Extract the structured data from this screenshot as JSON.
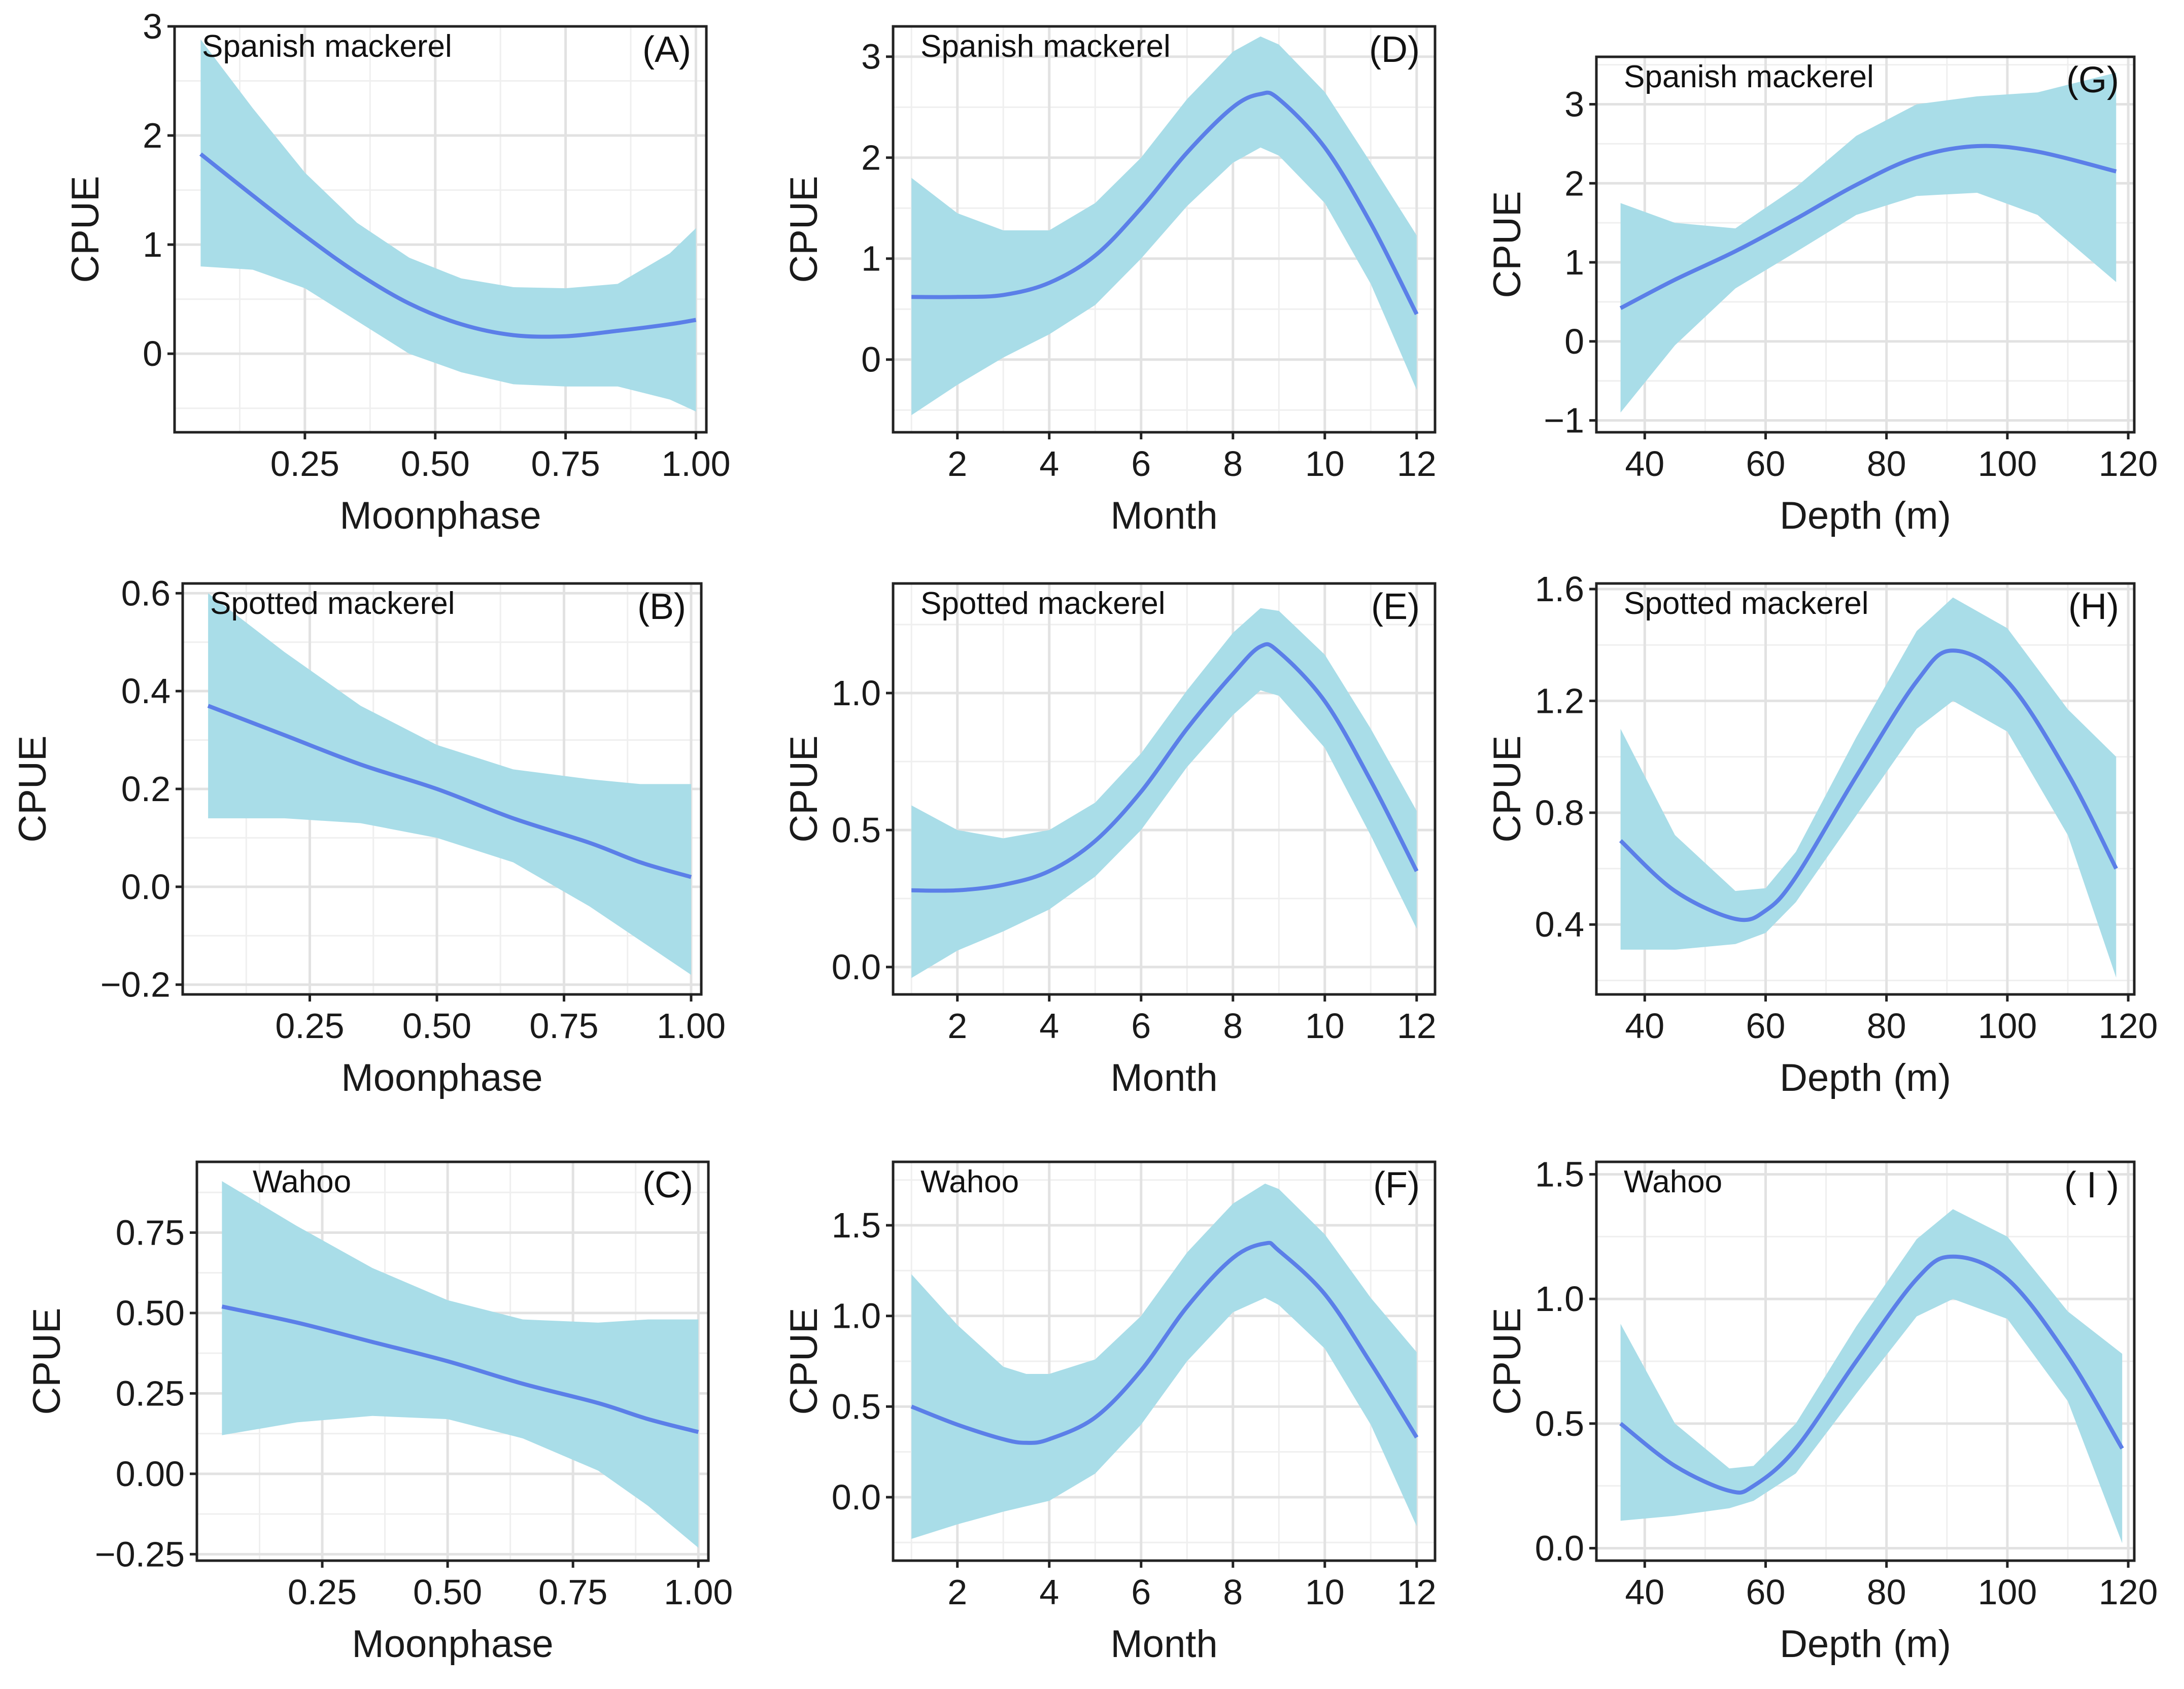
{
  "colors": {
    "ribbon": "#a9dde8",
    "line": "#5b7fe8",
    "grid_major": "#e2e2e2",
    "grid_minor": "#efefef",
    "frame": "#222222",
    "background": "#ffffff"
  },
  "chart_data": [
    {
      "id": "A",
      "label": "(A)",
      "species": "Spanish mackerel",
      "type": "line",
      "xlabel": "Moonphase",
      "ylabel": "CPUE",
      "xlim": [
        0.0,
        1.02
      ],
      "ylim": [
        -0.72,
        3.0
      ],
      "xticks": [
        0.25,
        0.5,
        0.75,
        1.0
      ],
      "xtick_labels": [
        "0.25",
        "0.50",
        "0.75",
        "1.00"
      ],
      "yticks": [
        0,
        1,
        2,
        3
      ],
      "ytick_labels": [
        "0",
        "1",
        "2",
        "3"
      ],
      "x": [
        0.05,
        0.15,
        0.25,
        0.35,
        0.45,
        0.55,
        0.65,
        0.75,
        0.85,
        0.95,
        1.0
      ],
      "y": [
        1.83,
        1.45,
        1.08,
        0.74,
        0.46,
        0.27,
        0.17,
        0.16,
        0.21,
        0.27,
        0.31
      ],
      "lower": [
        0.8,
        0.77,
        0.6,
        0.3,
        0.0,
        -0.17,
        -0.28,
        -0.3,
        -0.3,
        -0.42,
        -0.53
      ],
      "upper": [
        2.88,
        2.25,
        1.66,
        1.2,
        0.88,
        0.69,
        0.61,
        0.6,
        0.64,
        0.92,
        1.15
      ]
    },
    {
      "id": "B",
      "label": "(B)",
      "species": "Spotted mackerel",
      "type": "line",
      "xlabel": "Moonphase",
      "ylabel": "CPUE",
      "xlim": [
        0.0,
        1.02
      ],
      "ylim": [
        -0.22,
        0.62
      ],
      "xticks": [
        0.25,
        0.5,
        0.75,
        1.0
      ],
      "xtick_labels": [
        "0.25",
        "0.50",
        "0.75",
        "1.00"
      ],
      "yticks": [
        -0.2,
        0.0,
        0.2,
        0.4,
        0.6
      ],
      "ytick_labels": [
        "−0.2",
        "0.0",
        "0.2",
        "0.4",
        "0.6"
      ],
      "x": [
        0.05,
        0.2,
        0.35,
        0.5,
        0.65,
        0.8,
        0.9,
        1.0
      ],
      "y": [
        0.37,
        0.31,
        0.25,
        0.2,
        0.14,
        0.09,
        0.05,
        0.02
      ],
      "lower": [
        0.14,
        0.14,
        0.13,
        0.1,
        0.05,
        -0.04,
        -0.11,
        -0.18
      ],
      "upper": [
        0.6,
        0.48,
        0.37,
        0.29,
        0.24,
        0.22,
        0.21,
        0.21
      ]
    },
    {
      "id": "C",
      "label": "(C)",
      "species": "Wahoo",
      "type": "line",
      "xlabel": "Moonphase",
      "ylabel": "CPUE",
      "xlim": [
        0.0,
        1.02
      ],
      "ylim": [
        -0.27,
        0.97
      ],
      "xticks": [
        0.25,
        0.5,
        0.75,
        1.0
      ],
      "xtick_labels": [
        "0.25",
        "0.50",
        "0.75",
        "1.00"
      ],
      "yticks": [
        -0.25,
        0.0,
        0.25,
        0.5,
        0.75
      ],
      "ytick_labels": [
        "−0.25",
        "0.00",
        "0.25",
        "0.50",
        "0.75"
      ],
      "x": [
        0.05,
        0.2,
        0.35,
        0.5,
        0.65,
        0.8,
        0.9,
        1.0
      ],
      "y": [
        0.52,
        0.47,
        0.41,
        0.35,
        0.28,
        0.22,
        0.17,
        0.13
      ],
      "lower": [
        0.12,
        0.16,
        0.18,
        0.17,
        0.11,
        0.01,
        -0.1,
        -0.23
      ],
      "upper": [
        0.91,
        0.77,
        0.64,
        0.54,
        0.48,
        0.47,
        0.48,
        0.48
      ]
    },
    {
      "id": "D",
      "label": "(D)",
      "species": "Spanish mackerel",
      "type": "line",
      "xlabel": "Month",
      "ylabel": "CPUE",
      "xlim": [
        0.6,
        12.4
      ],
      "ylim": [
        -0.72,
        3.3
      ],
      "xticks": [
        2,
        4,
        6,
        8,
        10,
        12
      ],
      "xtick_labels": [
        "2",
        "4",
        "6",
        "8",
        "10",
        "12"
      ],
      "yticks": [
        0,
        1,
        2,
        3
      ],
      "ytick_labels": [
        "0",
        "1",
        "2",
        "3"
      ],
      "x": [
        1,
        2,
        3,
        4,
        5,
        6,
        7,
        8,
        8.6,
        9,
        10,
        11,
        12
      ],
      "y": [
        0.62,
        0.62,
        0.64,
        0.76,
        1.03,
        1.5,
        2.05,
        2.5,
        2.63,
        2.58,
        2.1,
        1.35,
        0.45
      ],
      "lower": [
        -0.55,
        -0.25,
        0.02,
        0.25,
        0.54,
        1.0,
        1.52,
        1.95,
        2.1,
        2.02,
        1.55,
        0.75,
        -0.3
      ],
      "upper": [
        1.8,
        1.45,
        1.28,
        1.28,
        1.55,
        2.0,
        2.58,
        3.05,
        3.2,
        3.12,
        2.65,
        1.95,
        1.23
      ]
    },
    {
      "id": "E",
      "label": "(E)",
      "species": "Spotted mackerel",
      "type": "line",
      "xlabel": "Month",
      "ylabel": "CPUE",
      "xlim": [
        0.6,
        12.4
      ],
      "ylim": [
        -0.1,
        1.4
      ],
      "xticks": [
        2,
        4,
        6,
        8,
        10,
        12
      ],
      "xtick_labels": [
        "2",
        "4",
        "6",
        "8",
        "10",
        "12"
      ],
      "yticks": [
        0.0,
        0.5,
        1.0
      ],
      "ytick_labels": [
        "0.0",
        "0.5",
        "1.0"
      ],
      "x": [
        1,
        2,
        3,
        4,
        5,
        6,
        7,
        8,
        8.6,
        9,
        10,
        11,
        12
      ],
      "y": [
        0.28,
        0.28,
        0.3,
        0.35,
        0.46,
        0.64,
        0.87,
        1.07,
        1.17,
        1.15,
        0.97,
        0.68,
        0.35
      ],
      "lower": [
        -0.04,
        0.06,
        0.13,
        0.21,
        0.33,
        0.5,
        0.73,
        0.92,
        1.01,
        0.99,
        0.8,
        0.48,
        0.14
      ],
      "upper": [
        0.59,
        0.5,
        0.47,
        0.5,
        0.6,
        0.78,
        1.01,
        1.22,
        1.31,
        1.3,
        1.14,
        0.87,
        0.57
      ]
    },
    {
      "id": "F",
      "label": "(F)",
      "species": "Wahoo",
      "type": "line",
      "xlabel": "Month",
      "ylabel": "CPUE",
      "xlim": [
        0.6,
        12.4
      ],
      "ylim": [
        -0.35,
        1.85
      ],
      "xticks": [
        2,
        4,
        6,
        8,
        10,
        12
      ],
      "xtick_labels": [
        "2",
        "4",
        "6",
        "8",
        "10",
        "12"
      ],
      "yticks": [
        0.0,
        0.5,
        1.0,
        1.5
      ],
      "ytick_labels": [
        "0.0",
        "0.5",
        "1.0",
        "1.5"
      ],
      "x": [
        1,
        2,
        3,
        3.5,
        4,
        5,
        6,
        7,
        8,
        8.7,
        9,
        10,
        11,
        12
      ],
      "y": [
        0.5,
        0.4,
        0.32,
        0.3,
        0.32,
        0.44,
        0.7,
        1.05,
        1.32,
        1.4,
        1.36,
        1.12,
        0.74,
        0.33
      ],
      "lower": [
        -0.23,
        -0.15,
        -0.08,
        -0.05,
        -0.02,
        0.13,
        0.4,
        0.75,
        1.02,
        1.1,
        1.06,
        0.82,
        0.4,
        -0.16
      ],
      "upper": [
        1.23,
        0.95,
        0.72,
        0.68,
        0.68,
        0.76,
        1.0,
        1.35,
        1.62,
        1.73,
        1.7,
        1.45,
        1.1,
        0.8
      ]
    },
    {
      "id": "G",
      "label": "(G)",
      "species": "Spanish mackerel",
      "type": "line",
      "xlabel": "Depth (m)",
      "ylabel": "CPUE",
      "xlim": [
        32,
        121
      ],
      "ylim": [
        -1.15,
        3.6
      ],
      "xticks": [
        40,
        60,
        80,
        100,
        120
      ],
      "xtick_labels": [
        "40",
        "60",
        "80",
        "100",
        "120"
      ],
      "yticks": [
        -1,
        0,
        1,
        2,
        3
      ],
      "ytick_labels": [
        "−1",
        "0",
        "1",
        "2",
        "3"
      ],
      "x": [
        36,
        45,
        55,
        65,
        75,
        85,
        95,
        105,
        118
      ],
      "y": [
        0.42,
        0.78,
        1.14,
        1.55,
        1.98,
        2.33,
        2.47,
        2.4,
        2.15
      ],
      "lower": [
        -0.9,
        -0.05,
        0.67,
        1.13,
        1.6,
        1.84,
        1.88,
        1.6,
        0.75
      ],
      "upper": [
        1.75,
        1.5,
        1.43,
        1.95,
        2.6,
        3.0,
        3.1,
        3.15,
        3.4
      ]
    },
    {
      "id": "H",
      "label": "(H)",
      "species": "Spotted mackerel",
      "type": "line",
      "xlabel": "Depth (m)",
      "ylabel": "CPUE",
      "xlim": [
        32,
        121
      ],
      "ylim": [
        0.15,
        1.62
      ],
      "xticks": [
        40,
        60,
        80,
        100,
        120
      ],
      "xtick_labels": [
        "40",
        "60",
        "80",
        "100",
        "120"
      ],
      "yticks": [
        0.4,
        0.8,
        1.2,
        1.6
      ],
      "ytick_labels": [
        "0.4",
        "0.8",
        "1.2",
        "1.6"
      ],
      "x": [
        36,
        45,
        55,
        60,
        65,
        75,
        85,
        91,
        100,
        110,
        118
      ],
      "y": [
        0.7,
        0.52,
        0.42,
        0.45,
        0.57,
        0.93,
        1.27,
        1.38,
        1.27,
        0.94,
        0.6
      ],
      "lower": [
        0.31,
        0.31,
        0.33,
        0.37,
        0.48,
        0.79,
        1.1,
        1.2,
        1.09,
        0.72,
        0.21
      ],
      "upper": [
        1.1,
        0.72,
        0.52,
        0.53,
        0.66,
        1.07,
        1.45,
        1.57,
        1.46,
        1.17,
        1.0
      ]
    },
    {
      "id": "I",
      "label": "( I )",
      "species": "Wahoo",
      "type": "line",
      "xlabel": "Depth (m)",
      "ylabel": "CPUE",
      "xlim": [
        32,
        121
      ],
      "ylim": [
        -0.05,
        1.55
      ],
      "xticks": [
        40,
        60,
        80,
        100,
        120
      ],
      "xtick_labels": [
        "40",
        "60",
        "80",
        "100",
        "120"
      ],
      "yticks": [
        0.0,
        0.5,
        1.0,
        1.5
      ],
      "ytick_labels": [
        "0.0",
        "0.5",
        "1.0",
        "1.5"
      ],
      "x": [
        36,
        45,
        54,
        58,
        65,
        75,
        85,
        91,
        100,
        110,
        119
      ],
      "y": [
        0.5,
        0.33,
        0.23,
        0.25,
        0.4,
        0.75,
        1.08,
        1.17,
        1.08,
        0.77,
        0.4
      ],
      "lower": [
        0.11,
        0.13,
        0.16,
        0.19,
        0.3,
        0.62,
        0.93,
        1.0,
        0.92,
        0.59,
        0.02
      ],
      "upper": [
        0.9,
        0.5,
        0.32,
        0.33,
        0.5,
        0.89,
        1.24,
        1.36,
        1.25,
        0.95,
        0.78
      ]
    }
  ]
}
